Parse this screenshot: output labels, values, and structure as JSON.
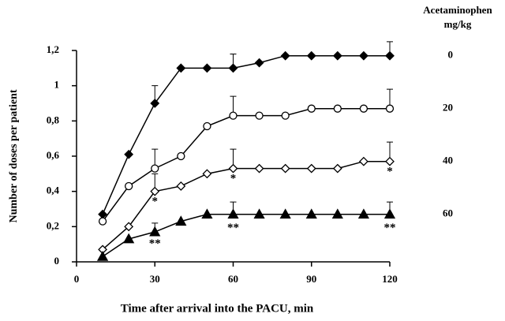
{
  "chart_data": {
    "type": "line",
    "xlabel": "Time after arrival into the PACU,  min",
    "ylabel": "Number of doses per patient",
    "legend_title": [
      "Acetaminophen",
      "mg/kg"
    ],
    "x": [
      10,
      20,
      30,
      40,
      50,
      60,
      70,
      80,
      90,
      100,
      110,
      120
    ],
    "series": [
      {
        "name": "0",
        "color": "#000000",
        "marker": "diamond-filled",
        "values": [
          0.27,
          0.61,
          0.9,
          1.1,
          1.1,
          1.1,
          1.13,
          1.17,
          1.17,
          1.17,
          1.17,
          1.17
        ],
        "errors": [
          null,
          null,
          0.1,
          null,
          null,
          0.08,
          null,
          null,
          null,
          null,
          null,
          0.08
        ]
      },
      {
        "name": "20",
        "color": "#000000",
        "marker": "circle-open",
        "values": [
          0.23,
          0.43,
          0.53,
          0.6,
          0.77,
          0.83,
          0.83,
          0.83,
          0.87,
          0.87,
          0.87,
          0.87
        ],
        "errors": [
          null,
          null,
          0.11,
          null,
          null,
          0.11,
          null,
          null,
          null,
          null,
          null,
          0.11
        ]
      },
      {
        "name": "40",
        "color": "#000000",
        "marker": "diamond-open",
        "values": [
          0.07,
          0.2,
          0.4,
          0.43,
          0.5,
          0.53,
          0.53,
          0.53,
          0.53,
          0.53,
          0.57,
          0.57
        ],
        "errors": [
          null,
          null,
          0.1,
          null,
          null,
          0.11,
          null,
          null,
          null,
          null,
          null,
          0.11
        ]
      },
      {
        "name": "60",
        "color": "#000000",
        "marker": "triangle-filled",
        "values": [
          0.03,
          0.13,
          0.17,
          0.23,
          0.27,
          0.27,
          0.27,
          0.27,
          0.27,
          0.27,
          0.27,
          0.27
        ],
        "errors": [
          null,
          null,
          0.05,
          null,
          null,
          0.07,
          null,
          null,
          null,
          null,
          null,
          0.07
        ]
      }
    ],
    "annotations": [
      {
        "text": "*",
        "x": 30,
        "y": 0.34
      },
      {
        "text": "*",
        "x": 60,
        "y": 0.47
      },
      {
        "text": "*",
        "x": 120,
        "y": 0.51
      },
      {
        "text": "**",
        "x": 30,
        "y": 0.1
      },
      {
        "text": "**",
        "x": 60,
        "y": 0.19
      },
      {
        "text": "**",
        "x": 120,
        "y": 0.19
      }
    ],
    "xlim": [
      0,
      120
    ],
    "xticks": [
      0,
      30,
      60,
      90,
      120
    ],
    "ylim": [
      0,
      1.2
    ],
    "yticks": [
      0,
      {
        "value": 0.2,
        "label": "0,2"
      },
      {
        "value": 0.4,
        "label": "0,4"
      },
      {
        "value": 0.6,
        "label": "0,6"
      },
      {
        "value": 0.8,
        "label": "0,8"
      },
      1,
      {
        "value": 1.2,
        "label": "1,2"
      }
    ]
  }
}
